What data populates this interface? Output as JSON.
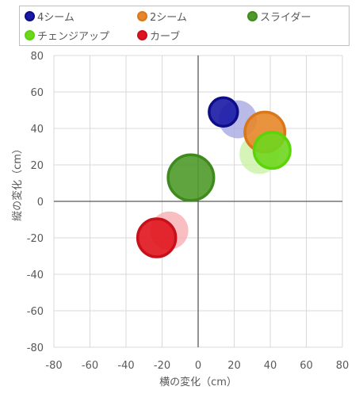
{
  "chart_data": {
    "type": "bubble",
    "xlabel": "横の変化（cm）",
    "ylabel": "縦の変化（cm）",
    "xlim": [
      -80,
      80
    ],
    "ylim": [
      -80,
      80
    ],
    "xticks": [
      -80,
      -60,
      -40,
      -20,
      0,
      20,
      40,
      60,
      80
    ],
    "yticks": [
      -80,
      -60,
      -40,
      -20,
      0,
      20,
      40,
      60,
      80
    ],
    "grid": true,
    "legend_position": "top",
    "series": [
      {
        "name": "4シーム",
        "fill": "#1a1aa6",
        "stroke": "#0d0d8a",
        "light": "#a9a9e3",
        "points": [
          {
            "x": 22,
            "y": 45,
            "r": 1.0,
            "faded": true
          },
          {
            "x": 14,
            "y": 49,
            "r": 0.75,
            "faded": false
          }
        ]
      },
      {
        "name": "2シーム",
        "fill": "#e8872a",
        "stroke": "#d9781a",
        "light": "#f5c99b",
        "points": [
          {
            "x": 37,
            "y": 38,
            "r": 1.05,
            "faded": false
          }
        ]
      },
      {
        "name": "スライダー",
        "fill": "#4f9a2b",
        "stroke": "#3f8a1e",
        "light": "#a8d48f",
        "points": [
          {
            "x": -4,
            "y": 13,
            "r": 1.2,
            "faded": false
          }
        ]
      },
      {
        "name": "チェンジアップ",
        "fill": "#6fd61e",
        "stroke": "#5cd40a",
        "light": "#c9f1a6",
        "points": [
          {
            "x": 34,
            "y": 26,
            "r": 1.05,
            "faded": true
          },
          {
            "x": 41,
            "y": 28,
            "r": 0.95,
            "faded": false
          }
        ]
      },
      {
        "name": "カーブ",
        "fill": "#e0141d",
        "stroke": "#c8101a",
        "light": "#f7aeb1",
        "points": [
          {
            "x": -16,
            "y": -16,
            "r": 1.0,
            "faded": true
          },
          {
            "x": -23,
            "y": -20,
            "r": 1.0,
            "faded": false
          }
        ]
      }
    ]
  }
}
